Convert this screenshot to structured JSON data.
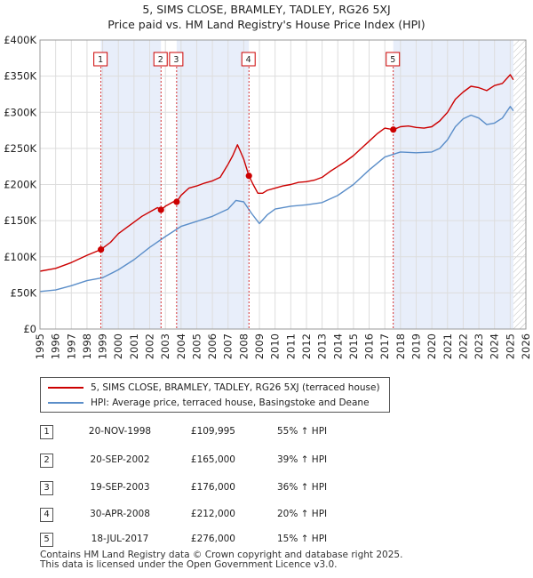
{
  "title_line1": "5, SIMS CLOSE, BRAMLEY, TADLEY, RG26 5XJ",
  "title_line2": "Price paid vs. HM Land Registry's House Price Index (HPI)",
  "colors": {
    "property": "#cc0000",
    "hpi": "#5b8ec9",
    "shade": "#e8eefa",
    "grid": "#dddddd",
    "marker_box": "#cc0000"
  },
  "chart_data": {
    "type": "line",
    "xlim": [
      1995,
      2026
    ],
    "ylim": [
      0,
      400000
    ],
    "y_ticks": [
      0,
      50000,
      100000,
      150000,
      200000,
      250000,
      300000,
      350000,
      400000
    ],
    "y_tick_labels": [
      "£0",
      "£50K",
      "£100K",
      "£150K",
      "£200K",
      "£250K",
      "£300K",
      "£350K",
      "£400K"
    ],
    "x_ticks": [
      1995,
      1996,
      1997,
      1998,
      1999,
      2000,
      2001,
      2002,
      2003,
      2004,
      2005,
      2006,
      2007,
      2008,
      2009,
      2010,
      2011,
      2012,
      2013,
      2014,
      2015,
      2016,
      2017,
      2018,
      2019,
      2020,
      2021,
      2022,
      2023,
      2024,
      2025,
      2026
    ],
    "shaded_bands": [
      [
        1998.89,
        2002.72
      ],
      [
        2003.72,
        2008.33
      ],
      [
        2017.54,
        2025.2
      ]
    ],
    "hatched_after": 2025.2,
    "series": [
      {
        "name": "5, SIMS CLOSE, BRAMLEY, TADLEY, RG26 5XJ (terraced house)",
        "color": "#cc0000",
        "x": [
          1995.0,
          1996.0,
          1997.0,
          1998.0,
          1998.89,
          1999.5,
          2000.0,
          2000.5,
          2001.0,
          2001.5,
          2002.0,
          2002.5,
          2002.72,
          2003.0,
          2003.5,
          2003.72,
          2004.0,
          2004.5,
          2005.0,
          2005.5,
          2006.0,
          2006.5,
          2007.0,
          2007.3,
          2007.6,
          2007.8,
          2008.0,
          2008.33,
          2008.6,
          2008.9,
          2009.2,
          2009.5,
          2010.0,
          2010.5,
          2011.0,
          2011.5,
          2012.0,
          2012.5,
          2013.0,
          2013.5,
          2014.0,
          2014.5,
          2015.0,
          2015.5,
          2016.0,
          2016.5,
          2017.0,
          2017.54,
          2018.0,
          2018.5,
          2019.0,
          2019.5,
          2020.0,
          2020.5,
          2021.0,
          2021.5,
          2022.0,
          2022.5,
          2023.0,
          2023.5,
          2024.0,
          2024.5,
          2025.0,
          2025.2
        ],
        "y": [
          80000,
          84000,
          92000,
          102000,
          109995,
          120000,
          132000,
          140000,
          148000,
          156000,
          162000,
          168000,
          165000,
          170000,
          176000,
          176000,
          185000,
          195000,
          198000,
          202000,
          205000,
          210000,
          228000,
          240000,
          255000,
          245000,
          235000,
          212000,
          200000,
          188000,
          188000,
          192000,
          195000,
          198000,
          200000,
          203000,
          204000,
          206000,
          210000,
          218000,
          225000,
          232000,
          240000,
          250000,
          260000,
          270000,
          278000,
          276000,
          280000,
          281000,
          279000,
          278000,
          280000,
          288000,
          300000,
          318000,
          328000,
          336000,
          334000,
          330000,
          337000,
          340000,
          352000,
          345000
        ]
      },
      {
        "name": "HPI: Average price, terraced house, Basingstoke and Deane",
        "color": "#5b8ec9",
        "x": [
          1995.0,
          1996.0,
          1997.0,
          1998.0,
          1999.0,
          2000.0,
          2001.0,
          2002.0,
          2003.0,
          2004.0,
          2005.0,
          2006.0,
          2007.0,
          2007.5,
          2008.0,
          2008.5,
          2009.0,
          2009.5,
          2010.0,
          2011.0,
          2012.0,
          2013.0,
          2014.0,
          2015.0,
          2016.0,
          2017.0,
          2018.0,
          2019.0,
          2020.0,
          2020.5,
          2021.0,
          2021.5,
          2022.0,
          2022.5,
          2023.0,
          2023.5,
          2024.0,
          2024.5,
          2025.0,
          2025.2
        ],
        "y": [
          52000,
          54000,
          60000,
          67000,
          71000,
          82000,
          96000,
          113000,
          128000,
          142000,
          149000,
          156000,
          166000,
          178000,
          176000,
          160000,
          146000,
          158000,
          166000,
          170000,
          172000,
          175000,
          185000,
          200000,
          220000,
          238000,
          245000,
          244000,
          245000,
          250000,
          262000,
          280000,
          291000,
          296000,
          292000,
          283000,
          285000,
          292000,
          308000,
          302000
        ]
      }
    ],
    "sales": [
      {
        "num": "1",
        "x": 1998.89,
        "y": 109995
      },
      {
        "num": "2",
        "x": 2002.72,
        "y": 165000
      },
      {
        "num": "3",
        "x": 2003.72,
        "y": 176000
      },
      {
        "num": "4",
        "x": 2008.33,
        "y": 212000
      },
      {
        "num": "5",
        "x": 2017.54,
        "y": 276000
      }
    ]
  },
  "legend": {
    "property_label": "5, SIMS CLOSE, BRAMLEY, TADLEY, RG26 5XJ (terraced house)",
    "hpi_label": "HPI: Average price, terraced house, Basingstoke and Deane"
  },
  "transactions": [
    {
      "num": "1",
      "date": "20-NOV-1998",
      "price": "£109,995",
      "hpi": "55% ↑ HPI"
    },
    {
      "num": "2",
      "date": "20-SEP-2002",
      "price": "£165,000",
      "hpi": "39% ↑ HPI"
    },
    {
      "num": "3",
      "date": "19-SEP-2003",
      "price": "£176,000",
      "hpi": "36% ↑ HPI"
    },
    {
      "num": "4",
      "date": "30-APR-2008",
      "price": "£212,000",
      "hpi": "20% ↑ HPI"
    },
    {
      "num": "5",
      "date": "18-JUL-2017",
      "price": "£276,000",
      "hpi": "15% ↑ HPI"
    }
  ],
  "footer_line1": "Contains HM Land Registry data © Crown copyright and database right 2025.",
  "footer_line2": "This data is licensed under the Open Government Licence v3.0."
}
